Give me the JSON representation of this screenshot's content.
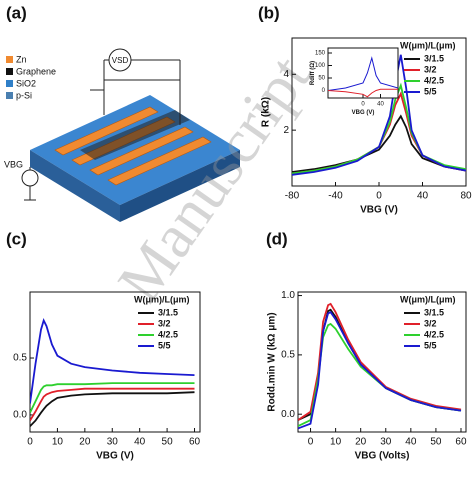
{
  "panel_labels": [
    "(a)",
    "(b)",
    "(c)",
    "(d)"
  ],
  "diagram": {
    "legend": [
      {
        "label": "Zn",
        "color": "#f08a30"
      },
      {
        "label": "Graphene",
        "color": "#111111"
      },
      {
        "label": "SiO2",
        "color": "#2f7fc8"
      },
      {
        "label": "p-Si",
        "color": "#4a7fb0"
      }
    ],
    "vsd": "VSD",
    "vbg": "VBG"
  },
  "watermark": "Manuscript",
  "chart_data": [
    {
      "type": "line",
      "xlabel": "VBG (V)",
      "ylabel": "R (kΩ)",
      "legend_title": "W(μm)/L(μm)",
      "legend": "upper right",
      "x": [
        -80,
        -60,
        -40,
        -20,
        0,
        10,
        15,
        20,
        25,
        30,
        40,
        60,
        80
      ],
      "xlim": [
        -80,
        80
      ],
      "xticks": [
        -80,
        -40,
        0,
        40,
        80
      ],
      "ylim": [
        0,
        5.3
      ],
      "yticks": [
        2,
        4
      ],
      "series": [
        {
          "name": "3/1.5",
          "color": "#111111",
          "values": [
            0.5,
            0.6,
            0.75,
            0.95,
            1.3,
            1.8,
            2.2,
            2.5,
            2.1,
            1.5,
            1.0,
            0.7,
            0.55
          ]
        },
        {
          "name": "3/2",
          "color": "#e0202a",
          "values": [
            0.45,
            0.55,
            0.7,
            0.95,
            1.4,
            2.2,
            2.9,
            3.3,
            2.6,
            1.8,
            1.1,
            0.7,
            0.55
          ]
        },
        {
          "name": "4/2.5",
          "color": "#2ed02e",
          "values": [
            0.45,
            0.55,
            0.7,
            0.95,
            1.4,
            2.3,
            3.1,
            3.6,
            2.8,
            1.9,
            1.1,
            0.75,
            0.6
          ]
        },
        {
          "name": "5/5",
          "color": "#1a1ad0",
          "values": [
            0.4,
            0.5,
            0.65,
            0.9,
            1.4,
            2.5,
            3.7,
            4.7,
            3.5,
            2.0,
            1.1,
            0.7,
            0.55
          ]
        }
      ]
    },
    {
      "type": "line",
      "xlabel": "VBG (V)",
      "ylabel": "Rdiff (Ω)",
      "x": [
        -80,
        -40,
        0,
        10,
        20,
        30,
        40,
        80
      ],
      "xlim": [
        -80,
        80
      ],
      "xticks": [
        0,
        40
      ],
      "ylim": [
        -30,
        170
      ],
      "yticks": [
        0,
        50,
        100,
        150
      ],
      "series": [
        {
          "color": "#1a1ad0",
          "values": [
            0,
            10,
            30,
            70,
            130,
            60,
            30,
            10
          ]
        },
        {
          "color": "#e0202a",
          "values": [
            0,
            -5,
            -15,
            -25,
            -10,
            0,
            5,
            5
          ]
        }
      ]
    },
    {
      "type": "line",
      "xlabel": "VBG (V)",
      "legend_title": "W(μm)/L(μm)",
      "legend": "upper right",
      "x": [
        0,
        2,
        4,
        5,
        6,
        8,
        10,
        15,
        20,
        30,
        40,
        50,
        60
      ],
      "xlim": [
        0,
        62
      ],
      "xticks": [
        0,
        10,
        20,
        30,
        40,
        50,
        60
      ],
      "ylim": [
        -0.15,
        1.08
      ],
      "yticks": [
        {
          "value": 0,
          "label": "0.0"
        },
        {
          "value": 0.5,
          "label": "0.5"
        }
      ],
      "series": [
        {
          "name": "3/1.5",
          "color": "#111111",
          "values": [
            -0.1,
            -0.05,
            0.02,
            0.05,
            0.08,
            0.12,
            0.15,
            0.17,
            0.18,
            0.19,
            0.19,
            0.19,
            0.2
          ]
        },
        {
          "name": "3/2",
          "color": "#e0202a",
          "values": [
            -0.05,
            0.03,
            0.12,
            0.16,
            0.18,
            0.2,
            0.21,
            0.22,
            0.23,
            0.23,
            0.23,
            0.23,
            0.23
          ]
        },
        {
          "name": "4/2.5",
          "color": "#2ed02e",
          "values": [
            0.02,
            0.12,
            0.22,
            0.25,
            0.26,
            0.26,
            0.27,
            0.27,
            0.27,
            0.28,
            0.28,
            0.28,
            0.28
          ]
        },
        {
          "name": "5/5",
          "color": "#1a1ad0",
          "values": [
            0.1,
            0.45,
            0.75,
            0.83,
            0.78,
            0.62,
            0.52,
            0.45,
            0.42,
            0.39,
            0.37,
            0.36,
            0.35
          ]
        }
      ]
    },
    {
      "type": "line",
      "xlabel": "VBG (Volts)",
      "ylabel": "Rodd.min W (kΩ μm)",
      "legend_title": "W(μm)/L(μm)",
      "legend": "upper right",
      "x": [
        -5,
        0,
        3,
        5,
        7,
        8,
        10,
        15,
        20,
        30,
        40,
        50,
        60
      ],
      "xlim": [
        -5,
        62
      ],
      "xticks": [
        0,
        10,
        20,
        30,
        40,
        50,
        60
      ],
      "ylim": [
        -0.15,
        1.03
      ],
      "yticks": [
        {
          "value": 0,
          "label": "0.0"
        },
        {
          "value": 0.5,
          "label": "0.5"
        },
        {
          "value": 1,
          "label": "1.0"
        }
      ],
      "series": [
        {
          "name": "3/1.5",
          "color": "#111111",
          "values": [
            -0.05,
            0.0,
            0.3,
            0.7,
            0.87,
            0.88,
            0.82,
            0.6,
            0.42,
            0.22,
            0.12,
            0.06,
            0.03
          ]
        },
        {
          "name": "3/2",
          "color": "#e0202a",
          "values": [
            -0.05,
            0.02,
            0.35,
            0.78,
            0.92,
            0.93,
            0.86,
            0.63,
            0.44,
            0.23,
            0.13,
            0.07,
            0.04
          ]
        },
        {
          "name": "4/2.5",
          "color": "#2ed02e",
          "values": [
            -0.1,
            -0.05,
            0.3,
            0.65,
            0.75,
            0.76,
            0.72,
            0.55,
            0.4,
            0.22,
            0.12,
            0.06,
            0.03
          ]
        },
        {
          "name": "5/5",
          "color": "#1a1ad0",
          "values": [
            -0.12,
            -0.08,
            0.25,
            0.7,
            0.85,
            0.86,
            0.8,
            0.6,
            0.42,
            0.22,
            0.12,
            0.06,
            0.03
          ]
        }
      ]
    }
  ]
}
